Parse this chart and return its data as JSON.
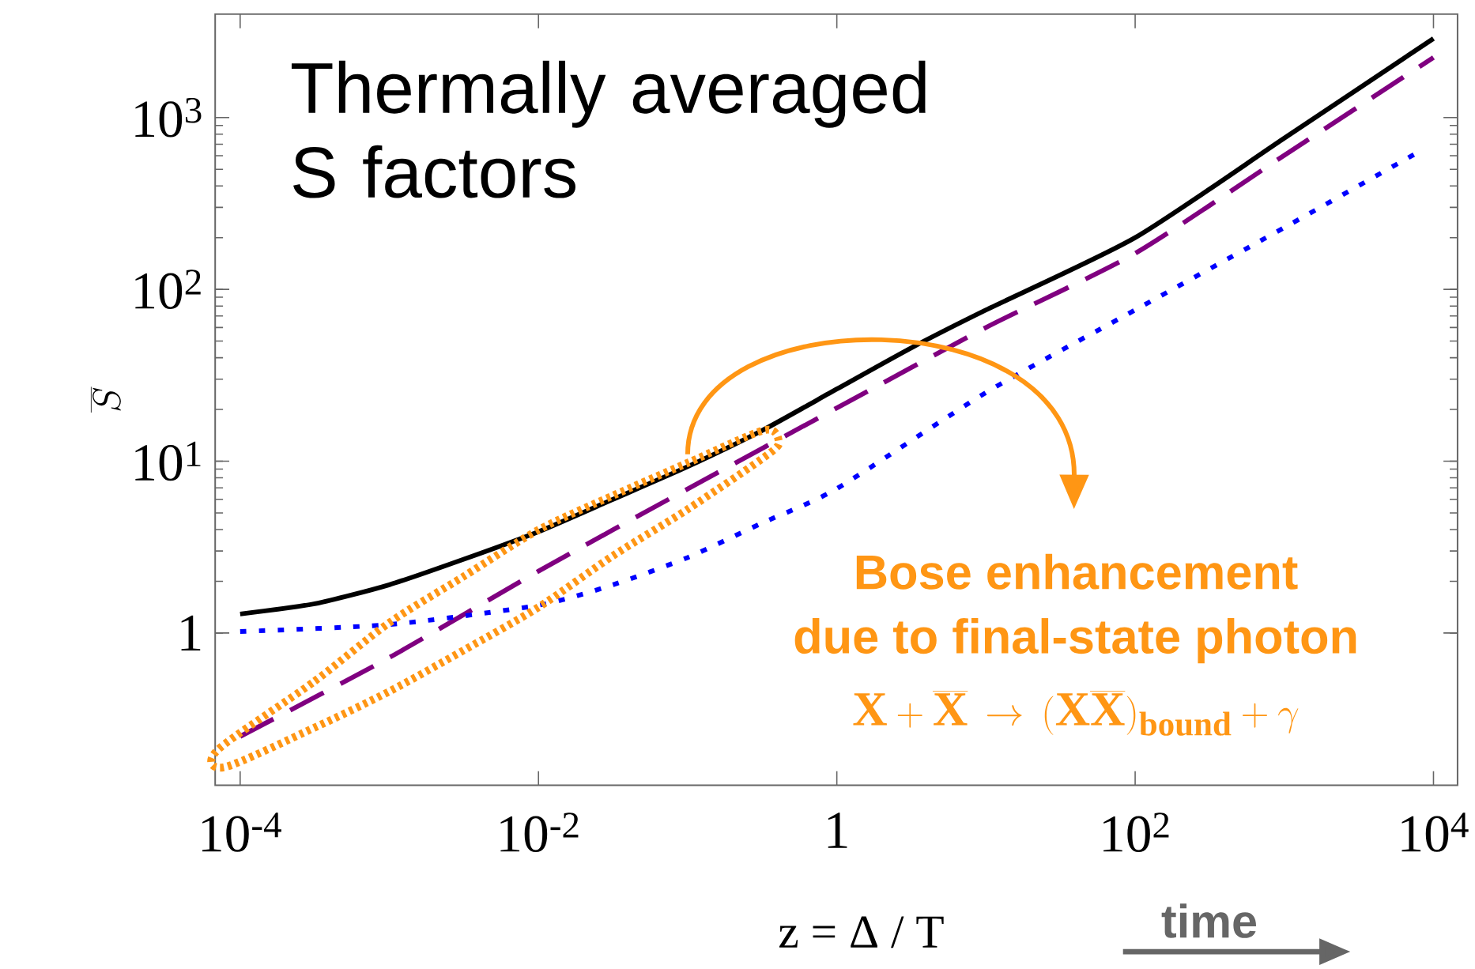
{
  "chart_data": {
    "type": "line",
    "title": "Thermally averaged S factors",
    "xlabel": "z = Δ / T",
    "ylabel": "\\overline{S}",
    "log": "xy",
    "xlim": [
      6.8e-05,
      14500
    ],
    "ylim": [
      0.13,
      4000
    ],
    "xticks": [
      {
        "value": 0.0001,
        "label": "10$^{-4}$"
      },
      {
        "value": 0.01,
        "label": "10$^{-2}$"
      },
      1,
      {
        "value": 100,
        "label": "10$^{2}$"
      },
      {
        "value": 10000,
        "label": "10$^{4}$"
      }
    ],
    "yticks": [
      1,
      {
        "value": 10,
        "label": "10$^{1}$"
      },
      {
        "value": 100,
        "label": "10$^{2}$"
      },
      {
        "value": 1000,
        "label": "10$^{3}$"
      }
    ],
    "annotations": [
      "Bose enhancement",
      "due to final-state photon",
      "\\mathbf{X}+\\overline{\\mathbf{X}}\\,\\rightarrow\\,(\\mathbf{X}\\overline{\\mathbf{X}})_{\\mathbf{bound}}+\\gamma",
      "time"
    ],
    "series": [
      {
        "color": "#000000",
        "line_style": "solid",
        "x": [
          0.0001,
          0.000316,
          0.001,
          0.00316,
          0.01,
          0.0316,
          0.1,
          0.316,
          1,
          3.16,
          10,
          100,
          1000,
          10000
        ],
        "values": [
          1.29,
          1.48,
          1.91,
          2.69,
          3.89,
          6.0,
          9.3,
          15.1,
          26.3,
          45.7,
          75.9,
          200,
          759,
          2884
        ]
      },
      {
        "color": "#800080",
        "line_style": "dashed",
        "x": [
          0.0001,
          0.001,
          0.01,
          0.1,
          1,
          10,
          100,
          1000,
          10000
        ],
        "values": [
          0.25,
          0.72,
          2.29,
          6.9,
          20.4,
          60,
          162,
          603,
          2239
        ]
      },
      {
        "color": "#0000ff",
        "line_style": "dotted",
        "x": [
          0.0001,
          0.001,
          0.01,
          0.0316,
          0.1,
          0.316,
          1,
          10,
          100,
          1000,
          7943
        ],
        "values": [
          1.02,
          1.12,
          1.45,
          1.91,
          2.75,
          4.37,
          6.92,
          25.1,
          75.9,
          229,
          631
        ]
      }
    ]
  }
}
